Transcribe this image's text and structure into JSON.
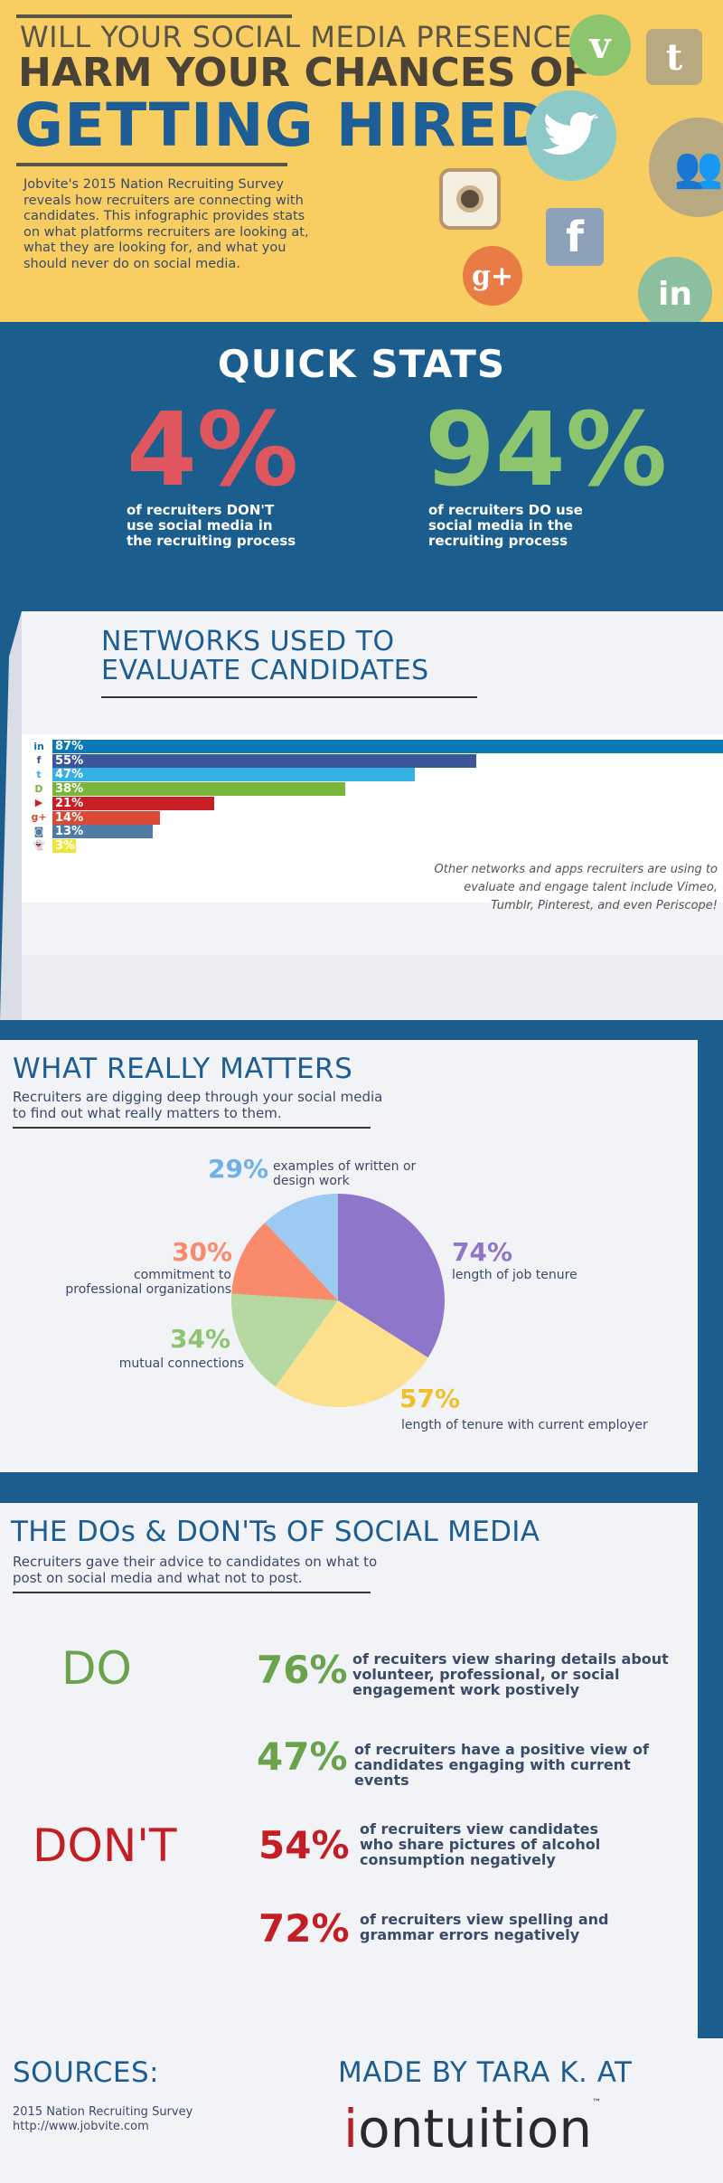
{
  "header": {
    "line1": "WILL YOUR SOCIAL MEDIA PRESENCE",
    "line2": "HARM YOUR CHANCES OF",
    "line3": "GETTING HIRED?",
    "description": "Jobvite's 2015 Nation Recruiting Survey reveals how recruiters are connecting with candidates. This infographic provides stats on what platforms recruiters are looking at, what they are looking for, and what you should never do on social media.",
    "icons": [
      "vimeo-icon",
      "tumblr-icon",
      "twitter-icon",
      "group-icon",
      "instagram-icon",
      "facebook-icon",
      "google-plus-icon",
      "linkedin-icon"
    ]
  },
  "quick_stats": {
    "title": "QUICK STATS",
    "left": {
      "value": "4%",
      "label": "of recruiters DON'T use social media in the recruiting process",
      "color": "#e0565e"
    },
    "right": {
      "value": "94%",
      "label": "of recruiters DO use social media in the recruiting process",
      "color": "#8cc56e"
    }
  },
  "networks": {
    "title_line1": "NETWORKS USED TO",
    "title_line2": "EVALUATE CANDIDATES",
    "note": "Other networks and apps recruiters are using to evaluate and engage talent include Vimeo, Tumblr, Pinterest, and even Periscope!",
    "bars": [
      {
        "icon": "in",
        "value": 87,
        "label": "87%",
        "color": "#0b79b5",
        "icon_color": "#0b79b5"
      },
      {
        "icon": "f",
        "value": 55,
        "label": "55%",
        "color": "#3b579a",
        "icon_color": "#3b579a"
      },
      {
        "icon": "t",
        "value": 47,
        "label": "47%",
        "color": "#35b0e4",
        "icon_color": "#35b0e4"
      },
      {
        "icon": "D",
        "value": 38,
        "label": "38%",
        "color": "#7ab53b",
        "icon_color": "#7ab53b"
      },
      {
        "icon": "▶",
        "value": 21,
        "label": "21%",
        "color": "#c81f27",
        "icon_color": "#c81f27"
      },
      {
        "icon": "g+",
        "value": 14,
        "label": "14%",
        "color": "#db4a36",
        "icon_color": "#db4a36"
      },
      {
        "icon": "◙",
        "value": 13,
        "label": "13%",
        "color": "#4f7ba5",
        "icon_color": "#4f7ba5"
      },
      {
        "icon": "👻",
        "value": 3,
        "label": "3%",
        "color": "#ede63a",
        "icon_color": "#555555"
      }
    ]
  },
  "matters": {
    "title": "WHAT REALLY MATTERS",
    "subtitle": "Recruiters are digging deep through your social media to find out what really matters to them.",
    "slices": [
      {
        "value": "74%",
        "label": "length of job tenure",
        "color": "#8e77cb"
      },
      {
        "value": "57%",
        "label": "length of tenure with current employer",
        "color": "#fde08d"
      },
      {
        "value": "34%",
        "label": "mutual connections",
        "color": "#b5d9a0"
      },
      {
        "value": "30%",
        "label": "commitment to professional organizations",
        "color": "#f98a6b"
      },
      {
        "value": "29%",
        "label": "examples of written or design work",
        "color": "#9dcaf3"
      }
    ]
  },
  "dos_donts": {
    "title": "THE DOs & DON'Ts OF SOCIAL MEDIA",
    "subtitle": "Recruiters gave their advice to candidates on what to post on social media and what not to post.",
    "do_label": "DO",
    "dont_label": "DON'T",
    "do_color": "#6ba34c",
    "dont_color": "#c41e25",
    "do_stats": [
      {
        "value": "76%",
        "text": "of recuiters view sharing details about volunteer, professional, or social engagement work postively"
      },
      {
        "value": "47%",
        "text": "of recruiters have a positive view of candidates engaging with current events"
      }
    ],
    "dont_stats": [
      {
        "value": "54%",
        "text": "of recruiters view candidates who share pictures of alcohol consumption negatively"
      },
      {
        "value": "72%",
        "text": "of recruiters view spelling and grammar errors negatively"
      }
    ]
  },
  "footer": {
    "sources_title": "SOURCES:",
    "source1": "2015 Nation Recruiting Survey",
    "source2": "http://www.jobvite.com",
    "made_by": "MADE BY TARA K. AT",
    "logo": "iontuition"
  }
}
